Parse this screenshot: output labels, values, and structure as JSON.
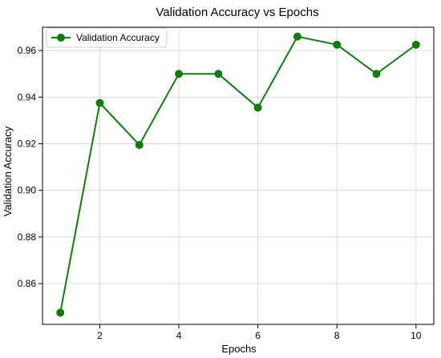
{
  "chart_data": {
    "type": "line",
    "title": "Validation Accuracy vs Epochs",
    "xlabel": "Epochs",
    "ylabel": "Validation Accuracy",
    "xlim": [
      0.55,
      10.45
    ],
    "ylim": [
      0.8425,
      0.97
    ],
    "xticks": [
      2,
      4,
      6,
      8,
      10
    ],
    "yticks": [
      0.86,
      0.88,
      0.9,
      0.92,
      0.94,
      0.96
    ],
    "ytick_labels": [
      "0.86",
      "0.88",
      "0.90",
      "0.92",
      "0.94",
      "0.96"
    ],
    "grid": true,
    "legend_position": "top-left",
    "series": [
      {
        "name": "Validation Accuracy",
        "color": "#107c10",
        "marker": "circle",
        "x": [
          1,
          2,
          3,
          4,
          5,
          6,
          7,
          8,
          9,
          10
        ],
        "values": [
          0.8475,
          0.9375,
          0.9195,
          0.95,
          0.95,
          0.9355,
          0.966,
          0.9625,
          0.95,
          0.9625
        ]
      }
    ]
  }
}
